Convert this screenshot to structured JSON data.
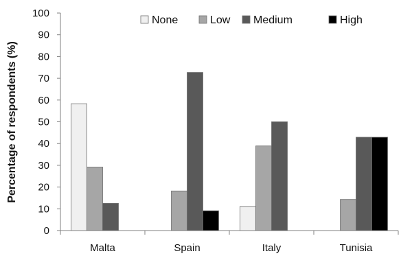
{
  "chart_data": {
    "type": "bar",
    "categories": [
      "Malta",
      "Spain",
      "Italy",
      "Tunisia"
    ],
    "series": [
      {
        "name": "None",
        "color": "#f0f0f0",
        "values": [
          58.3,
          0,
          11.1,
          0
        ]
      },
      {
        "name": "Low",
        "color": "#a6a6a6",
        "values": [
          29.2,
          18.2,
          38.9,
          14.3
        ]
      },
      {
        "name": "Medium",
        "color": "#595959",
        "values": [
          12.5,
          72.7,
          50.0,
          42.9
        ]
      },
      {
        "name": "High",
        "color": "#000000",
        "values": [
          0,
          9.1,
          0,
          42.9
        ]
      }
    ],
    "ylabel": "Percentage of respondents  (%)",
    "xlabel": "",
    "ylim": [
      0,
      100
    ],
    "yticks": [
      0,
      10,
      20,
      30,
      40,
      50,
      60,
      70,
      80,
      90,
      100
    ],
    "grid": false,
    "legend_position": "top"
  }
}
